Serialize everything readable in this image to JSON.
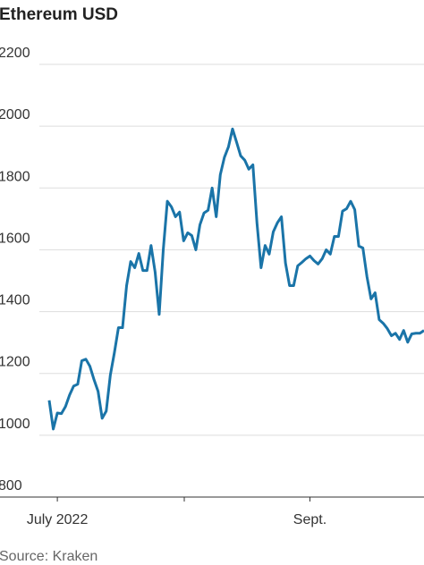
{
  "chart_data": {
    "type": "line",
    "title": "Ethereum USD",
    "source": "Source: Kraken",
    "categories": [
      null,
      null,
      "July 2022",
      null,
      null,
      null,
      null,
      null,
      null,
      null,
      null,
      null,
      null,
      null,
      null,
      null,
      null,
      null,
      null,
      null,
      null,
      null,
      null,
      null,
      null,
      null,
      null,
      null,
      null,
      null,
      null,
      null,
      null,
      null,
      null,
      null,
      null,
      null,
      null,
      null,
      null,
      null,
      null,
      null,
      null,
      null,
      null,
      null,
      null,
      null,
      null,
      null,
      null,
      null,
      null,
      null,
      null,
      null,
      null,
      null,
      null,
      null,
      null,
      null,
      "Sept.",
      null,
      null,
      null,
      null,
      null,
      null,
      null,
      null,
      null,
      null,
      null,
      null,
      null,
      null,
      null,
      null,
      null,
      null,
      null,
      null,
      null,
      null,
      null,
      null,
      null,
      null,
      null,
      null
    ],
    "series": [
      {
        "name": "Ethereum USD",
        "color": "#1a74a8",
        "values": [
          1113,
          1020,
          1072,
          1070,
          1093,
          1130,
          1159,
          1165,
          1241,
          1246,
          1223,
          1180,
          1142,
          1055,
          1078,
          1194,
          1267,
          1348,
          1348,
          1484,
          1562,
          1542,
          1588,
          1533,
          1533,
          1614,
          1528,
          1391,
          1600,
          1757,
          1739,
          1707,
          1722,
          1629,
          1655,
          1646,
          1600,
          1681,
          1719,
          1728,
          1800,
          1707,
          1843,
          1899,
          1933,
          1991,
          1948,
          1904,
          1890,
          1861,
          1875,
          1687,
          1542,
          1614,
          1586,
          1658,
          1687,
          1707,
          1557,
          1484,
          1484,
          1548,
          1559,
          1571,
          1580,
          1565,
          1554,
          1571,
          1600,
          1586,
          1643,
          1643,
          1725,
          1733,
          1757,
          1730,
          1612,
          1606,
          1513,
          1441,
          1461,
          1374,
          1362,
          1345,
          1322,
          1330,
          1310,
          1339,
          1301,
          1328,
          1330,
          1330,
          1339
        ]
      }
    ],
    "ylim": [
      800,
      2200
    ],
    "yticks": [
      800,
      1000,
      1200,
      1400,
      1600,
      1800,
      2000,
      2200
    ],
    "grid": true
  }
}
